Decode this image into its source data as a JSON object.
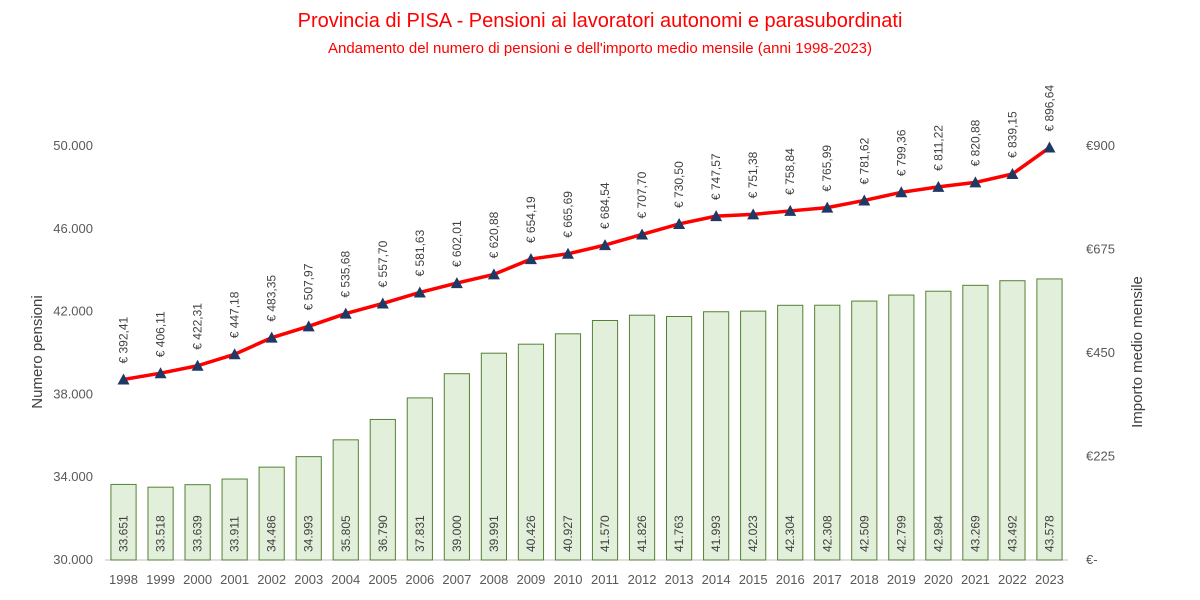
{
  "title": "Provincia di PISA - Pensioni ai lavoratori autonomi e parasubordinati",
  "subtitle": "Andamento del numero di pensioni e dell'importo medio mensile (anni 1998-2023)",
  "colors": {
    "title": "#ff0000",
    "bar_fill": "#e2efda",
    "bar_stroke": "#548235",
    "line": "#ff0000",
    "marker": "#1f3864"
  },
  "chart_data": {
    "type": "bar",
    "categories": [
      "1998",
      "1999",
      "2000",
      "2001",
      "2002",
      "2003",
      "2004",
      "2005",
      "2006",
      "2007",
      "2008",
      "2009",
      "2010",
      "2011",
      "2012",
      "2013",
      "2014",
      "2015",
      "2016",
      "2017",
      "2018",
      "2019",
      "2020",
      "2021",
      "2022",
      "2023"
    ],
    "series": [
      {
        "type": "bar",
        "axis": "left",
        "values": [
          33651,
          33518,
          33639,
          33911,
          34486,
          34993,
          35805,
          36790,
          37831,
          39000,
          39991,
          40426,
          40927,
          41570,
          41826,
          41763,
          41993,
          42023,
          42304,
          42308,
          42509,
          42799,
          42984,
          43269,
          43492,
          43578
        ],
        "labels": [
          "33.651",
          "33.518",
          "33.639",
          "33.911",
          "34.486",
          "34.993",
          "35.805",
          "36.790",
          "37.831",
          "39.000",
          "39.991",
          "40.426",
          "40.927",
          "41.570",
          "41.826",
          "41.763",
          "41.993",
          "42.023",
          "42.304",
          "42.308",
          "42.509",
          "42.799",
          "42.984",
          "43.269",
          "43.492",
          "43.578"
        ]
      },
      {
        "type": "line",
        "axis": "right",
        "marker": "triangle",
        "values": [
          392.41,
          406.11,
          422.31,
          447.18,
          483.35,
          507.97,
          535.68,
          557.7,
          581.63,
          602.01,
          620.88,
          654.19,
          665.69,
          684.54,
          707.7,
          730.5,
          747.57,
          751.38,
          758.84,
          765.99,
          781.62,
          799.36,
          811.22,
          820.88,
          839.15,
          896.64
        ],
        "labels": [
          "€ 392,41",
          "€ 406,11",
          "€ 422,31",
          "€ 447,18",
          "€ 483,35",
          "€ 507,97",
          "€ 535,68",
          "€ 557,70",
          "€ 581,63",
          "€ 602,01",
          "€ 620,88",
          "€ 654,19",
          "€ 665,69",
          "€ 684,54",
          "€ 707,70",
          "€ 730,50",
          "€ 747,57",
          "€ 751,38",
          "€ 758,84",
          "€ 765,99",
          "€ 781,62",
          "€ 799,36",
          "€ 811,22",
          "€ 820,88",
          "€ 839,15",
          "€ 896,64"
        ]
      }
    ],
    "ylabel": "Numero pensioni",
    "y2label": "Importo medio mensile",
    "ylim": [
      30000,
      50000
    ],
    "y2lim": [
      0,
      900
    ],
    "yticks": [
      30000,
      34000,
      38000,
      42000,
      46000,
      50000
    ],
    "ytick_labels": [
      "30.000",
      "34.000",
      "38.000",
      "42.000",
      "46.000",
      "50.000"
    ],
    "y2ticks": [
      0,
      225,
      450,
      675,
      900
    ],
    "y2tick_labels": [
      "€-",
      "€225",
      "€450",
      "€675",
      "€900"
    ],
    "grid": false,
    "legend": "none"
  }
}
